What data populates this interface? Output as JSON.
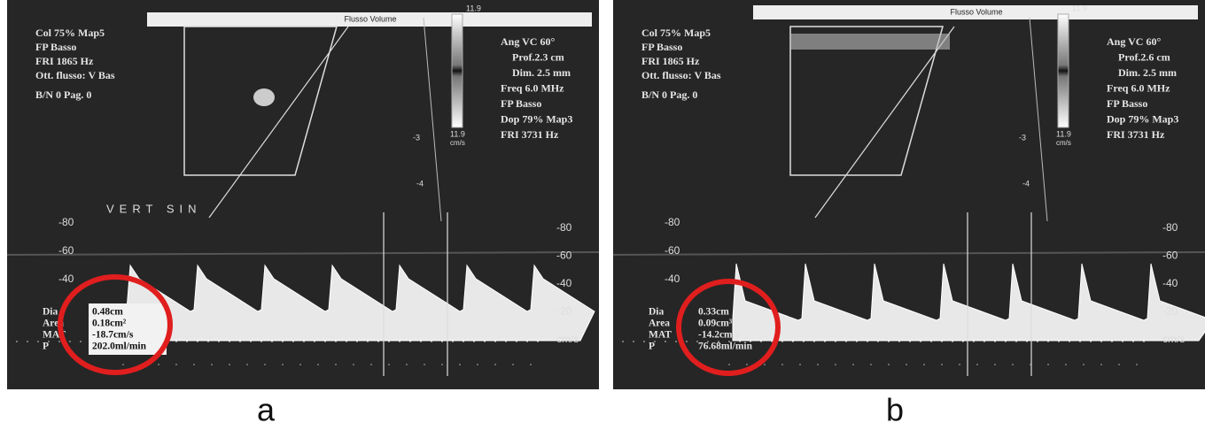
{
  "panels": [
    {
      "label": "a",
      "header": "Flusso Volume",
      "left_info": [
        "Col 75% Map5",
        "FP Basso",
        "FRI 1865 Hz",
        "Ott. flusso: V Bas",
        "B/N 0 Pag. 0"
      ],
      "right_info": [
        "Ang VC 60°",
        "Prof.2.3 cm",
        "Dim. 2.5 mm",
        "Freq 6.0 MHz",
        "FP Basso",
        "Dop 79% Map3",
        "FRI 3731 Hz"
      ],
      "colorbar": {
        "top": "11.9",
        "bottom": "11.9",
        "unit": "cm/s"
      },
      "depth_marks": [
        "-3",
        "-4"
      ],
      "annotation": "VERT SIN",
      "scale_left": [
        "-80",
        "-60",
        "-40"
      ],
      "scale_right": [
        "-80",
        "-60",
        "-40",
        "-20",
        "cm/s"
      ],
      "measurements": [
        {
          "name": "Dia",
          "value": "0.48cm"
        },
        {
          "name": "Area",
          "value": "0.18cm²"
        },
        {
          "name": "MAT",
          "value": "-18.7cm/s"
        },
        {
          "name": "P",
          "value": "202.0ml/min"
        }
      ]
    },
    {
      "label": "b",
      "header": "Flusso Volume",
      "left_info": [
        "Col 75% Map5",
        "FP Basso",
        "FRI 1865 Hz",
        "Ott. flusso: V Bas",
        "B/N 0 Pag. 0"
      ],
      "right_info": [
        "Ang VC 60°",
        "Prof.2.6 cm",
        "Dim. 2.5 mm",
        "Freq 6.0 MHz",
        "FP Basso",
        "Dop 79% Map3",
        "FRI 3731 Hz"
      ],
      "colorbar": {
        "top": "11.9",
        "bottom": "11.9",
        "unit": "cm/s"
      },
      "depth_marks": [
        "-3",
        "-4"
      ],
      "scale_left": [
        "-80",
        "-60",
        "-40"
      ],
      "scale_right": [
        "-80",
        "-60",
        "-40",
        "-20",
        "cm/s"
      ],
      "measurements": [
        {
          "name": "Dia",
          "value": "0.33cm"
        },
        {
          "name": "Area",
          "value": "0.09cm³"
        },
        {
          "name": "MAT",
          "value": "-14.2cm/s"
        },
        {
          "name": "P",
          "value": "76.68ml/min"
        }
      ]
    }
  ]
}
